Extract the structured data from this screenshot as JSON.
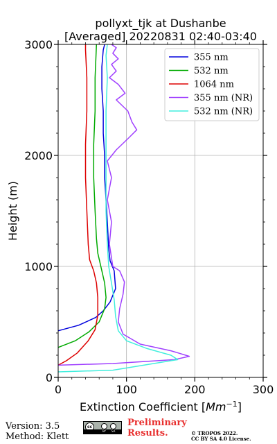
{
  "chart_data": {
    "type": "line",
    "title": "pollyxt_tjk at Dushanbe",
    "subtitle": "[Averaged] 20220831 02:40-03:40",
    "xlabel_prefix": "Extinction Coefficient [",
    "xlabel_unit": "Mm",
    "xlabel_exp": "−1",
    "xlabel_suffix": "]",
    "ylabel": "Height (m)",
    "xlim": [
      0,
      300
    ],
    "ylim": [
      0,
      3000
    ],
    "x_ticks": [
      0,
      100,
      200,
      300
    ],
    "y_ticks": [
      0,
      1000,
      2000,
      3000
    ],
    "grid": true,
    "legend_position": "top-right",
    "series": [
      {
        "name": "355 nm",
        "color": "#0000dd",
        "points": [
          [
            0,
            420
          ],
          [
            30,
            470
          ],
          [
            55,
            540
          ],
          [
            66,
            600
          ],
          [
            76,
            680
          ],
          [
            84,
            800
          ],
          [
            82,
            960
          ],
          [
            76,
            1050
          ],
          [
            74,
            1160
          ],
          [
            72,
            1400
          ],
          [
            70,
            1600
          ],
          [
            68,
            1800
          ],
          [
            68,
            2000
          ],
          [
            66,
            2200
          ],
          [
            66,
            2400
          ],
          [
            64,
            2600
          ],
          [
            64,
            2800
          ],
          [
            66,
            2950
          ],
          [
            68,
            3000
          ]
        ]
      },
      {
        "name": "532 nm",
        "color": "#00aa00",
        "points": [
          [
            0,
            270
          ],
          [
            25,
            330
          ],
          [
            45,
            410
          ],
          [
            60,
            500
          ],
          [
            68,
            620
          ],
          [
            70,
            720
          ],
          [
            68,
            850
          ],
          [
            64,
            960
          ],
          [
            58,
            1120
          ],
          [
            56,
            1250
          ],
          [
            54,
            1500
          ],
          [
            52,
            1800
          ],
          [
            52,
            2100
          ],
          [
            54,
            2400
          ],
          [
            54,
            2700
          ],
          [
            56,
            3000
          ]
        ]
      },
      {
        "name": "1064 nm",
        "color": "#dd0000",
        "points": [
          [
            0,
            110
          ],
          [
            12,
            150
          ],
          [
            28,
            220
          ],
          [
            44,
            330
          ],
          [
            54,
            430
          ],
          [
            58,
            560
          ],
          [
            58,
            720
          ],
          [
            56,
            850
          ],
          [
            52,
            960
          ],
          [
            46,
            1060
          ],
          [
            44,
            1200
          ],
          [
            42,
            1500
          ],
          [
            40,
            1800
          ],
          [
            40,
            2100
          ],
          [
            42,
            2400
          ],
          [
            42,
            2700
          ],
          [
            40,
            2950
          ],
          [
            40,
            3000
          ]
        ]
      },
      {
        "name": "355 nm (NR)",
        "color": "#a040ff",
        "points": [
          [
            0,
            110
          ],
          [
            80,
            125
          ],
          [
            170,
            160
          ],
          [
            192,
            190
          ],
          [
            165,
            240
          ],
          [
            120,
            300
          ],
          [
            95,
            390
          ],
          [
            88,
            500
          ],
          [
            90,
            620
          ],
          [
            95,
            750
          ],
          [
            97,
            860
          ],
          [
            90,
            960
          ],
          [
            80,
            1000
          ],
          [
            75,
            1200
          ],
          [
            78,
            1400
          ],
          [
            72,
            1600
          ],
          [
            78,
            1800
          ],
          [
            72,
            1950
          ],
          [
            85,
            2050
          ],
          [
            102,
            2150
          ],
          [
            115,
            2230
          ],
          [
            108,
            2300
          ],
          [
            102,
            2400
          ],
          [
            85,
            2500
          ],
          [
            98,
            2560
          ],
          [
            88,
            2640
          ],
          [
            75,
            2700
          ],
          [
            85,
            2760
          ],
          [
            78,
            2820
          ],
          [
            88,
            2870
          ],
          [
            80,
            2920
          ],
          [
            85,
            2970
          ],
          [
            78,
            3000
          ]
        ]
      },
      {
        "name": "532 nm (NR)",
        "color": "#40eedd",
        "points": [
          [
            0,
            50
          ],
          [
            80,
            65
          ],
          [
            175,
            160
          ],
          [
            165,
            200
          ],
          [
            130,
            260
          ],
          [
            100,
            330
          ],
          [
            88,
            420
          ],
          [
            84,
            550
          ],
          [
            82,
            700
          ],
          [
            78,
            850
          ],
          [
            74,
            1000
          ],
          [
            72,
            1200
          ],
          [
            70,
            1500
          ],
          [
            70,
            1800
          ],
          [
            70,
            2100
          ],
          [
            70,
            2400
          ],
          [
            72,
            2700
          ],
          [
            70,
            2900
          ],
          [
            72,
            3000
          ]
        ]
      }
    ]
  },
  "footer": {
    "version": "Version: 3.5",
    "method": "Method: Klett",
    "preliminary_line1": "Preliminary",
    "preliminary_line2": "Results.",
    "copyright_line1": "© TROPOS 2022.",
    "copyright_line2": "CC BY SA 4.0 License.",
    "license_badge": "cc",
    "license_by": "BY",
    "license_sa": "SA"
  }
}
